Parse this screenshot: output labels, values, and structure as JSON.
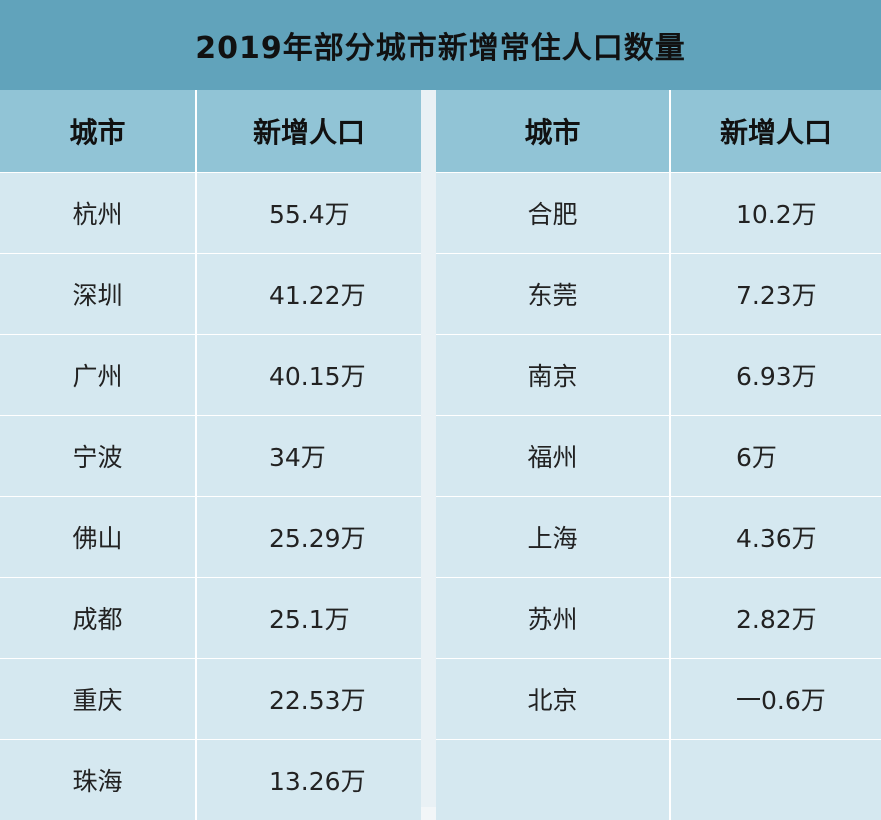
{
  "title": "2019年部分城市新增常住人口数量",
  "headers": {
    "city": "城市",
    "value": "新增人口"
  },
  "colors": {
    "title_bg": "#61a3bb",
    "header_bg": "#91c4d6",
    "cell_bg": "#d5e8f0"
  },
  "chart_data": {
    "type": "table",
    "title": "2019年部分城市新增常住人口数量",
    "columns": [
      "城市",
      "新增人口"
    ],
    "unit": "万",
    "left": [
      {
        "city": "杭州",
        "value": "55.4万"
      },
      {
        "city": "深圳",
        "value": "41.22万"
      },
      {
        "city": "广州",
        "value": "40.15万"
      },
      {
        "city": "宁波",
        "value": "34万"
      },
      {
        "city": "佛山",
        "value": "25.29万"
      },
      {
        "city": "成都",
        "value": "25.1万"
      },
      {
        "city": "重庆",
        "value": "22.53万"
      },
      {
        "city": "珠海",
        "value": "13.26万"
      }
    ],
    "right": [
      {
        "city": "合肥",
        "value": "10.2万"
      },
      {
        "city": "东莞",
        "value": "7.23万"
      },
      {
        "city": "南京",
        "value": "6.93万"
      },
      {
        "city": "福州",
        "value": "6万"
      },
      {
        "city": "上海",
        "value": "4.36万"
      },
      {
        "city": "苏州",
        "value": "2.82万"
      },
      {
        "city": "北京",
        "value": "一0.6万"
      }
    ],
    "values_numeric": {
      "杭州": 55.4,
      "深圳": 41.22,
      "广州": 40.15,
      "宁波": 34,
      "佛山": 25.29,
      "成都": 25.1,
      "重庆": 22.53,
      "珠海": 13.26,
      "合肥": 10.2,
      "东莞": 7.23,
      "南京": 6.93,
      "福州": 6,
      "上海": 4.36,
      "苏州": 2.82,
      "北京": -0.6
    }
  }
}
